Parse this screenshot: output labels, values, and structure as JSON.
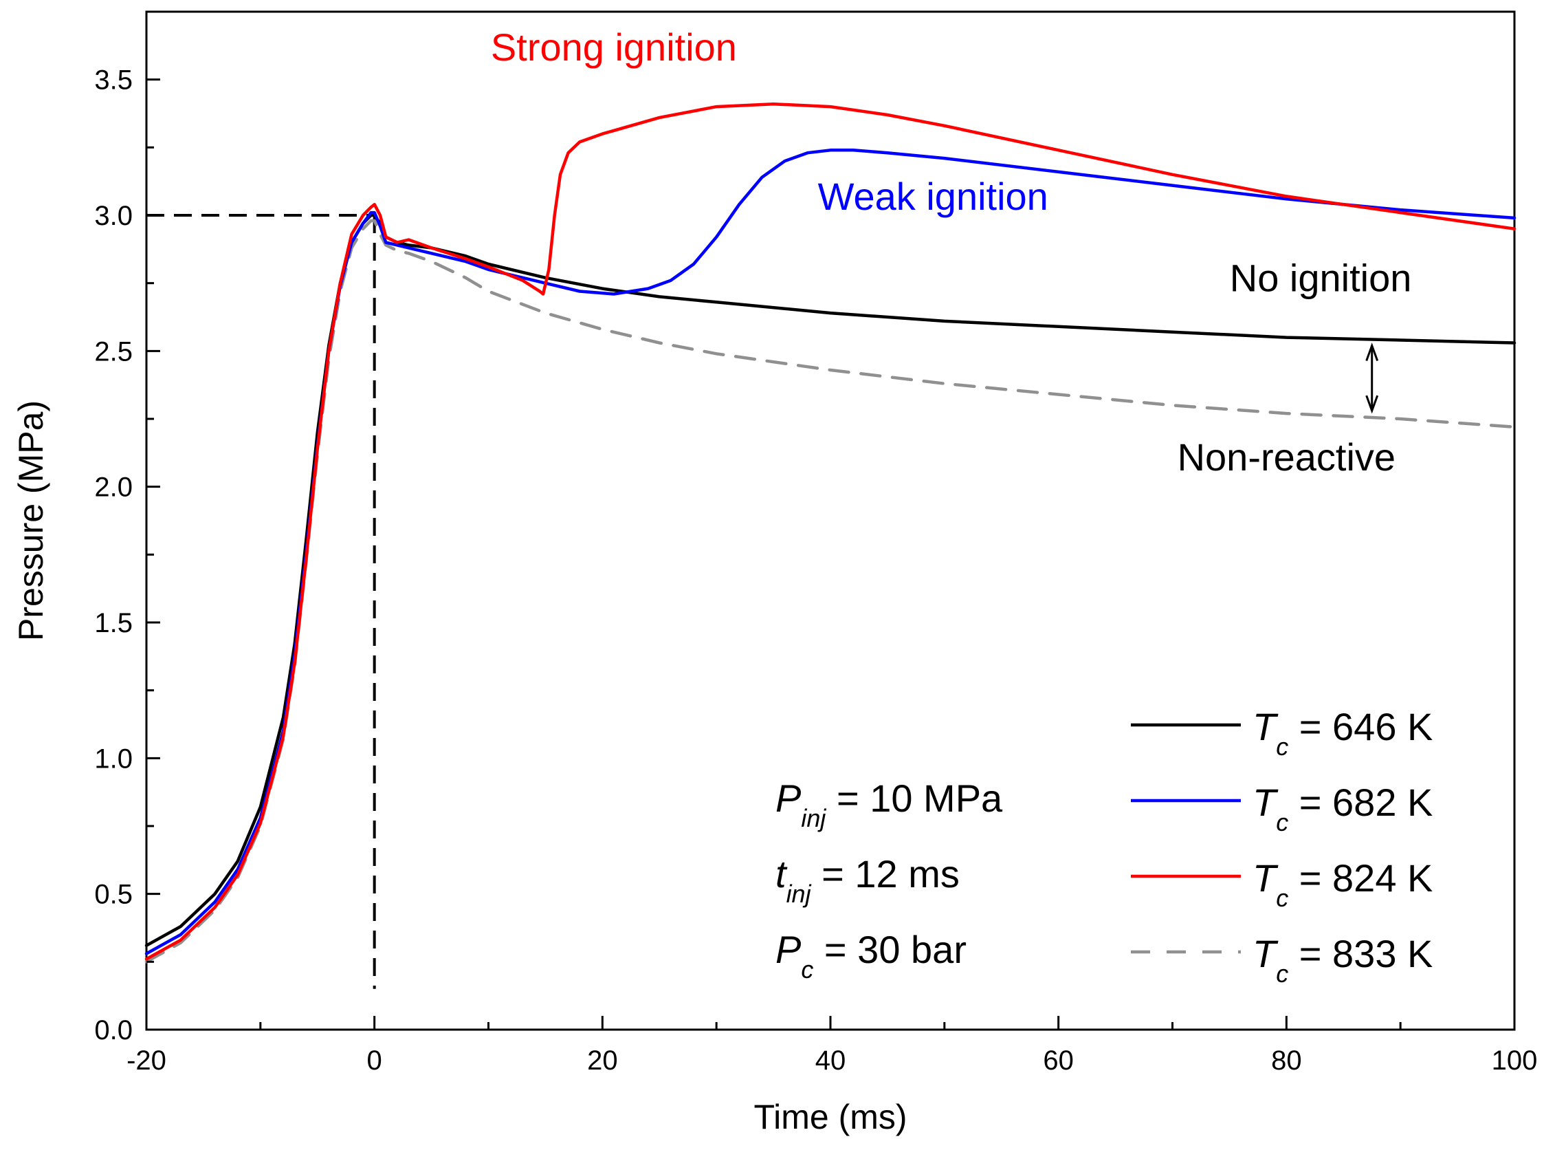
{
  "chart_data": {
    "type": "line",
    "title": "",
    "xlabel": "Time (ms)",
    "ylabel": "Pressure (MPa)",
    "xlim": [
      -20,
      100
    ],
    "ylim": [
      0,
      3.75
    ],
    "xticks": [
      -20,
      0,
      20,
      40,
      60,
      80,
      100
    ],
    "xtick_labels": [
      "-20",
      "0",
      "20",
      "40",
      "60",
      "80",
      "100"
    ],
    "yticks": [
      0,
      0.5,
      1.0,
      1.5,
      2.0,
      2.5,
      3.0,
      3.5
    ],
    "ytick_labels": [
      "0.0",
      "0.5",
      "1.0",
      "1.5",
      "2.0",
      "2.5",
      "3.0",
      "3.5"
    ],
    "grid": false,
    "legend_position": "bottom-right",
    "series": [
      {
        "name": "646 K",
        "color": "#000000",
        "dash": "solid",
        "x": [
          -20,
          -17,
          -14,
          -12,
          -10,
          -8,
          -7,
          -6,
          -5,
          -4,
          -3,
          -2,
          -1,
          -0.3,
          0,
          0.5,
          1,
          2,
          3,
          5,
          8,
          10,
          15,
          20,
          25,
          30,
          40,
          50,
          60,
          70,
          80,
          90,
          100
        ],
        "y": [
          0.31,
          0.38,
          0.5,
          0.62,
          0.82,
          1.15,
          1.42,
          1.8,
          2.2,
          2.52,
          2.75,
          2.9,
          2.97,
          3.0,
          3.0,
          2.97,
          2.92,
          2.9,
          2.89,
          2.88,
          2.85,
          2.82,
          2.77,
          2.73,
          2.7,
          2.68,
          2.64,
          2.61,
          2.59,
          2.57,
          2.55,
          2.54,
          2.53
        ]
      },
      {
        "name": "682 K",
        "color": "#0000ff",
        "dash": "solid",
        "x": [
          -20,
          -17,
          -14,
          -12,
          -10,
          -8,
          -7,
          -6,
          -5,
          -4,
          -3,
          -2,
          -1,
          -0.3,
          0,
          0.5,
          1,
          2,
          3,
          5,
          8,
          10,
          15,
          18,
          21,
          24,
          26,
          28,
          30,
          32,
          34,
          36,
          38,
          40,
          42,
          45,
          50,
          60,
          70,
          80,
          90,
          100
        ],
        "y": [
          0.28,
          0.35,
          0.47,
          0.59,
          0.78,
          1.1,
          1.38,
          1.75,
          2.15,
          2.5,
          2.74,
          2.9,
          2.97,
          3.01,
          3.01,
          2.96,
          2.9,
          2.89,
          2.88,
          2.86,
          2.83,
          2.8,
          2.75,
          2.72,
          2.71,
          2.73,
          2.76,
          2.82,
          2.92,
          3.04,
          3.14,
          3.2,
          3.23,
          3.24,
          3.24,
          3.23,
          3.21,
          3.16,
          3.11,
          3.06,
          3.02,
          2.99
        ]
      },
      {
        "name": "824 K",
        "color": "#ff0000",
        "dash": "solid",
        "x": [
          -20,
          -17,
          -14,
          -12,
          -10,
          -8,
          -7,
          -6,
          -5,
          -4,
          -3,
          -2,
          -1,
          -0.3,
          0,
          0.5,
          1,
          2,
          3,
          5,
          8,
          10,
          13,
          14.5,
          14.8,
          15.3,
          15.8,
          16.3,
          17,
          18,
          20,
          25,
          30,
          35,
          40,
          45,
          50,
          60,
          70,
          80,
          90,
          100
        ],
        "y": [
          0.26,
          0.33,
          0.45,
          0.57,
          0.76,
          1.08,
          1.35,
          1.73,
          2.14,
          2.5,
          2.75,
          2.93,
          3.0,
          3.03,
          3.04,
          3.0,
          2.92,
          2.9,
          2.91,
          2.88,
          2.84,
          2.81,
          2.76,
          2.72,
          2.71,
          2.8,
          3.0,
          3.15,
          3.23,
          3.27,
          3.3,
          3.36,
          3.4,
          3.41,
          3.4,
          3.37,
          3.33,
          3.24,
          3.15,
          3.07,
          3.01,
          2.95
        ]
      },
      {
        "name": "833 K",
        "color": "#909090",
        "dash": "dashed",
        "x": [
          -20,
          -17,
          -14,
          -12,
          -10,
          -8,
          -7,
          -6,
          -5,
          -4,
          -3,
          -2,
          -1,
          -0.3,
          0,
          0.5,
          1,
          2,
          3,
          5,
          8,
          10,
          15,
          20,
          25,
          30,
          40,
          50,
          60,
          70,
          80,
          90,
          100
        ],
        "y": [
          0.25,
          0.32,
          0.44,
          0.56,
          0.75,
          1.07,
          1.34,
          1.72,
          2.12,
          2.47,
          2.72,
          2.88,
          2.95,
          2.98,
          2.98,
          2.93,
          2.89,
          2.87,
          2.86,
          2.83,
          2.77,
          2.72,
          2.64,
          2.58,
          2.53,
          2.49,
          2.43,
          2.38,
          2.34,
          2.3,
          2.27,
          2.25,
          2.22
        ]
      }
    ],
    "reference_lines": [
      {
        "from": [
          -20,
          3.0
        ],
        "to": [
          0,
          3.0
        ],
        "color": "#000000",
        "dash": "dashed"
      },
      {
        "from": [
          0,
          3.0
        ],
        "to": [
          0,
          0.15
        ],
        "color": "#000000",
        "dash": "dashed"
      }
    ],
    "double_arrow": {
      "x": 87.5,
      "y_from": 2.53,
      "y_to": 2.27
    },
    "annotations": [
      {
        "text": "Strong ignition",
        "color": "#ff0000",
        "x": 21,
        "y": 3.57
      },
      {
        "text": "Weak ignition",
        "color": "#0000ff",
        "x": 49,
        "y": 3.02
      },
      {
        "text": "No ignition",
        "color": "#000000",
        "x": 83,
        "y": 2.72
      },
      {
        "text": "Non-reactive",
        "color": "#000000",
        "x": 80,
        "y": 2.06
      }
    ],
    "legend": [
      {
        "prefix": "T",
        "sub": "c",
        "value": " = 646 K",
        "color": "#000000",
        "dash": "solid"
      },
      {
        "prefix": "T",
        "sub": "c",
        "value": " = 682 K",
        "color": "#0000ff",
        "dash": "solid"
      },
      {
        "prefix": "T",
        "sub": "c",
        "value": " = 824 K",
        "color": "#ff0000",
        "dash": "solid"
      },
      {
        "prefix": "T",
        "sub": "c",
        "value": " = 833 K",
        "color": "#909090",
        "dash": "dashed"
      }
    ],
    "conditions": [
      {
        "prefix": "P",
        "sub": "inj",
        "value": " = 10 MPa"
      },
      {
        "prefix": "t",
        "sub": "inj",
        "value": " = 12 ms"
      },
      {
        "prefix": "P",
        "sub": "c",
        "value": " = 30 bar"
      }
    ]
  }
}
